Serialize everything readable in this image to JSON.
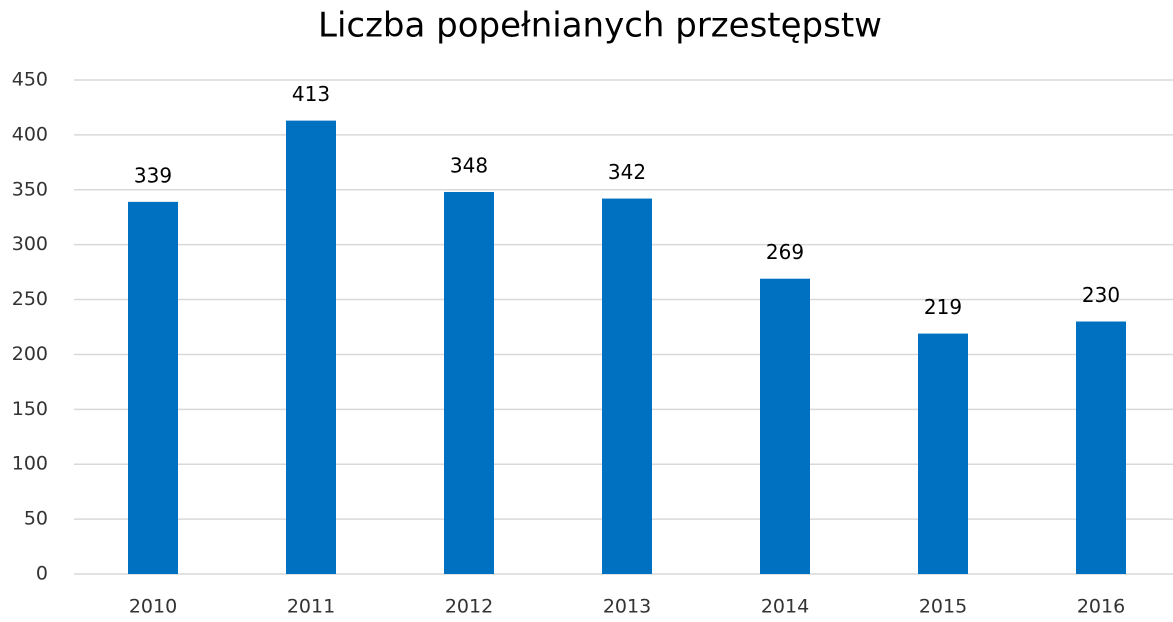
{
  "chart_data": {
    "type": "bar",
    "title": "Liczba popełnianych przestępstw",
    "categories": [
      "2010",
      "2011",
      "2012",
      "2013",
      "2014",
      "2015",
      "2016"
    ],
    "values": [
      339,
      413,
      348,
      342,
      269,
      219,
      230
    ],
    "color": "#0070c0",
    "ylim": [
      0,
      450
    ],
    "yticks": [
      0,
      50,
      100,
      150,
      200,
      250,
      300,
      350,
      400,
      450
    ],
    "grid": true
  }
}
